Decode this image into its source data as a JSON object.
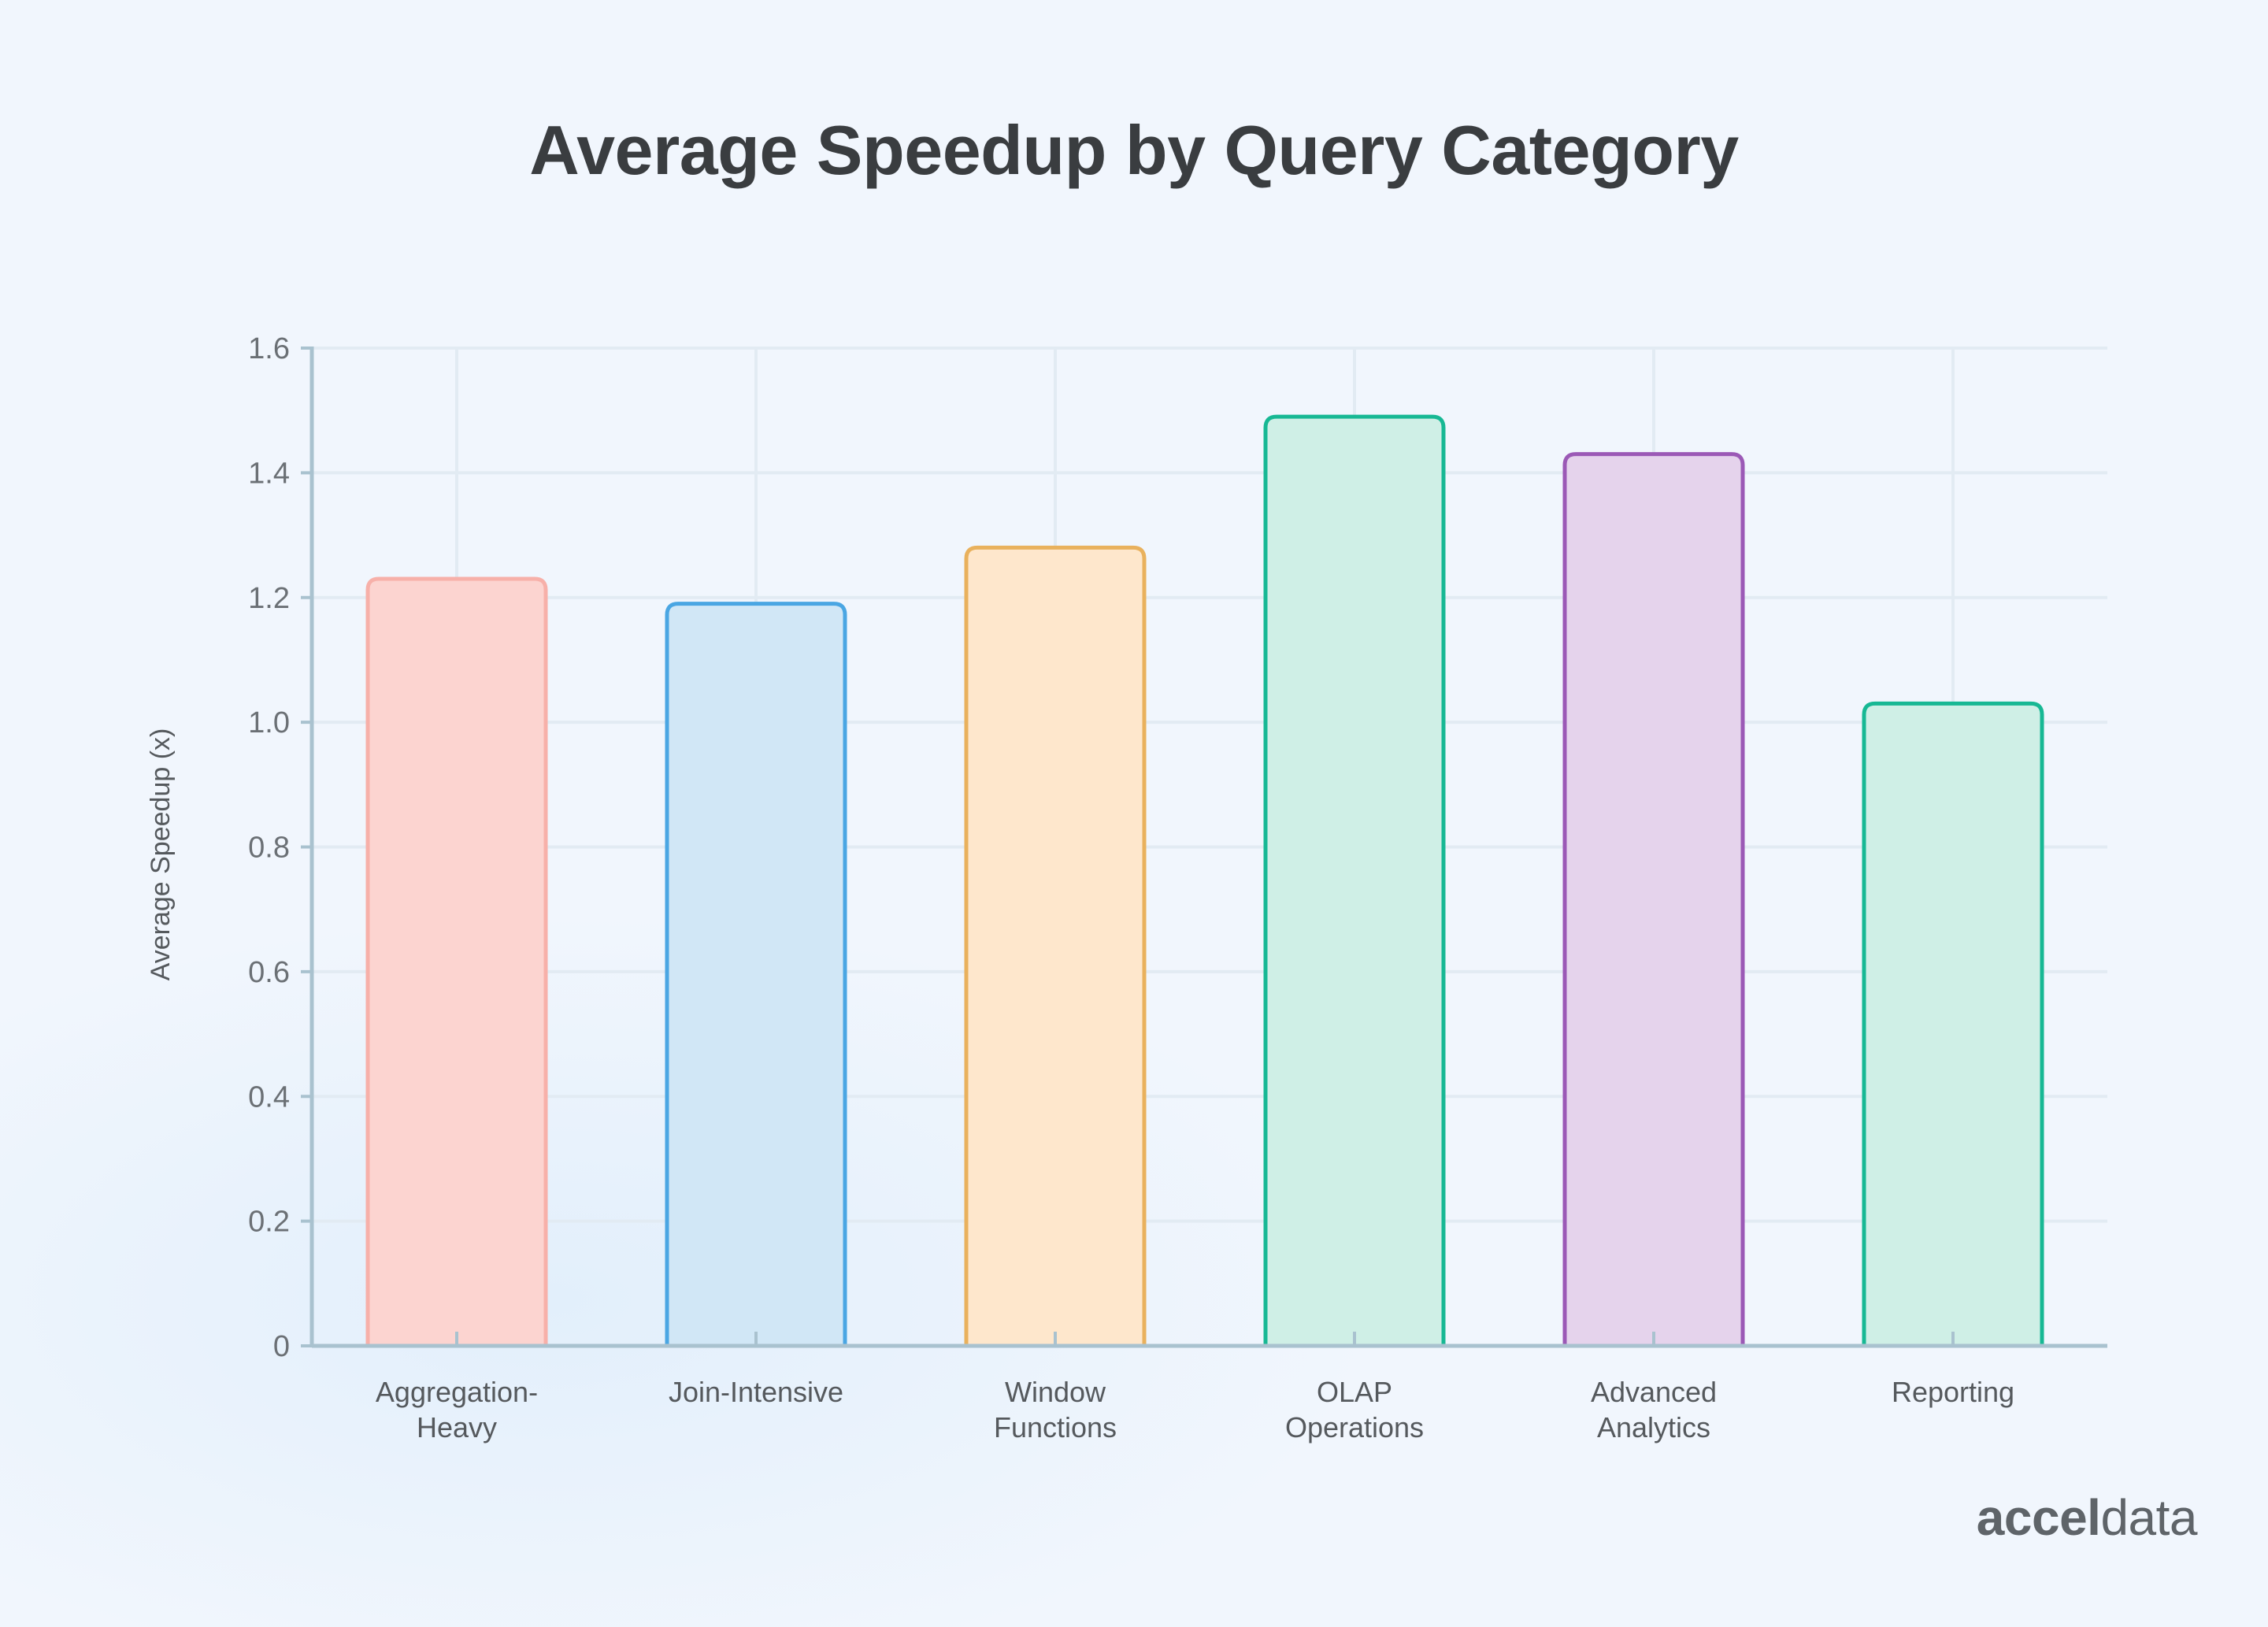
{
  "chart_data": {
    "type": "bar",
    "title": "Average Speedup by Query Category",
    "ylabel": "Average Speedup (x)",
    "xlabel": "",
    "ylim": [
      0,
      1.6
    ],
    "yticks": [
      "0",
      "0.2",
      "0.4",
      "0.6",
      "0.8",
      "1.0",
      "1.2",
      "1.4",
      "1.6"
    ],
    "grid": true,
    "categories": [
      [
        "Aggregation-",
        "Heavy"
      ],
      [
        "Join-Intensive"
      ],
      [
        "Window",
        "Functions"
      ],
      [
        "OLAP",
        "Operations"
      ],
      [
        "Advanced",
        "Analytics"
      ],
      [
        "Reporting"
      ]
    ],
    "values": [
      1.23,
      1.19,
      1.28,
      1.49,
      1.43,
      1.03
    ],
    "colors": [
      {
        "fill": "#fcd4d0",
        "stroke": "#f7b0a9"
      },
      {
        "fill": "#d1e7f6",
        "stroke": "#4aa6e3"
      },
      {
        "fill": "#fee7cc",
        "stroke": "#e9b15d"
      },
      {
        "fill": "#cfefe6",
        "stroke": "#17b894"
      },
      {
        "fill": "#e5d3ec",
        "stroke": "#9b59b6"
      },
      {
        "fill": "#cfefe6",
        "stroke": "#17b894"
      }
    ]
  },
  "brand": {
    "logo_bold": "accel",
    "logo_light": "data"
  }
}
